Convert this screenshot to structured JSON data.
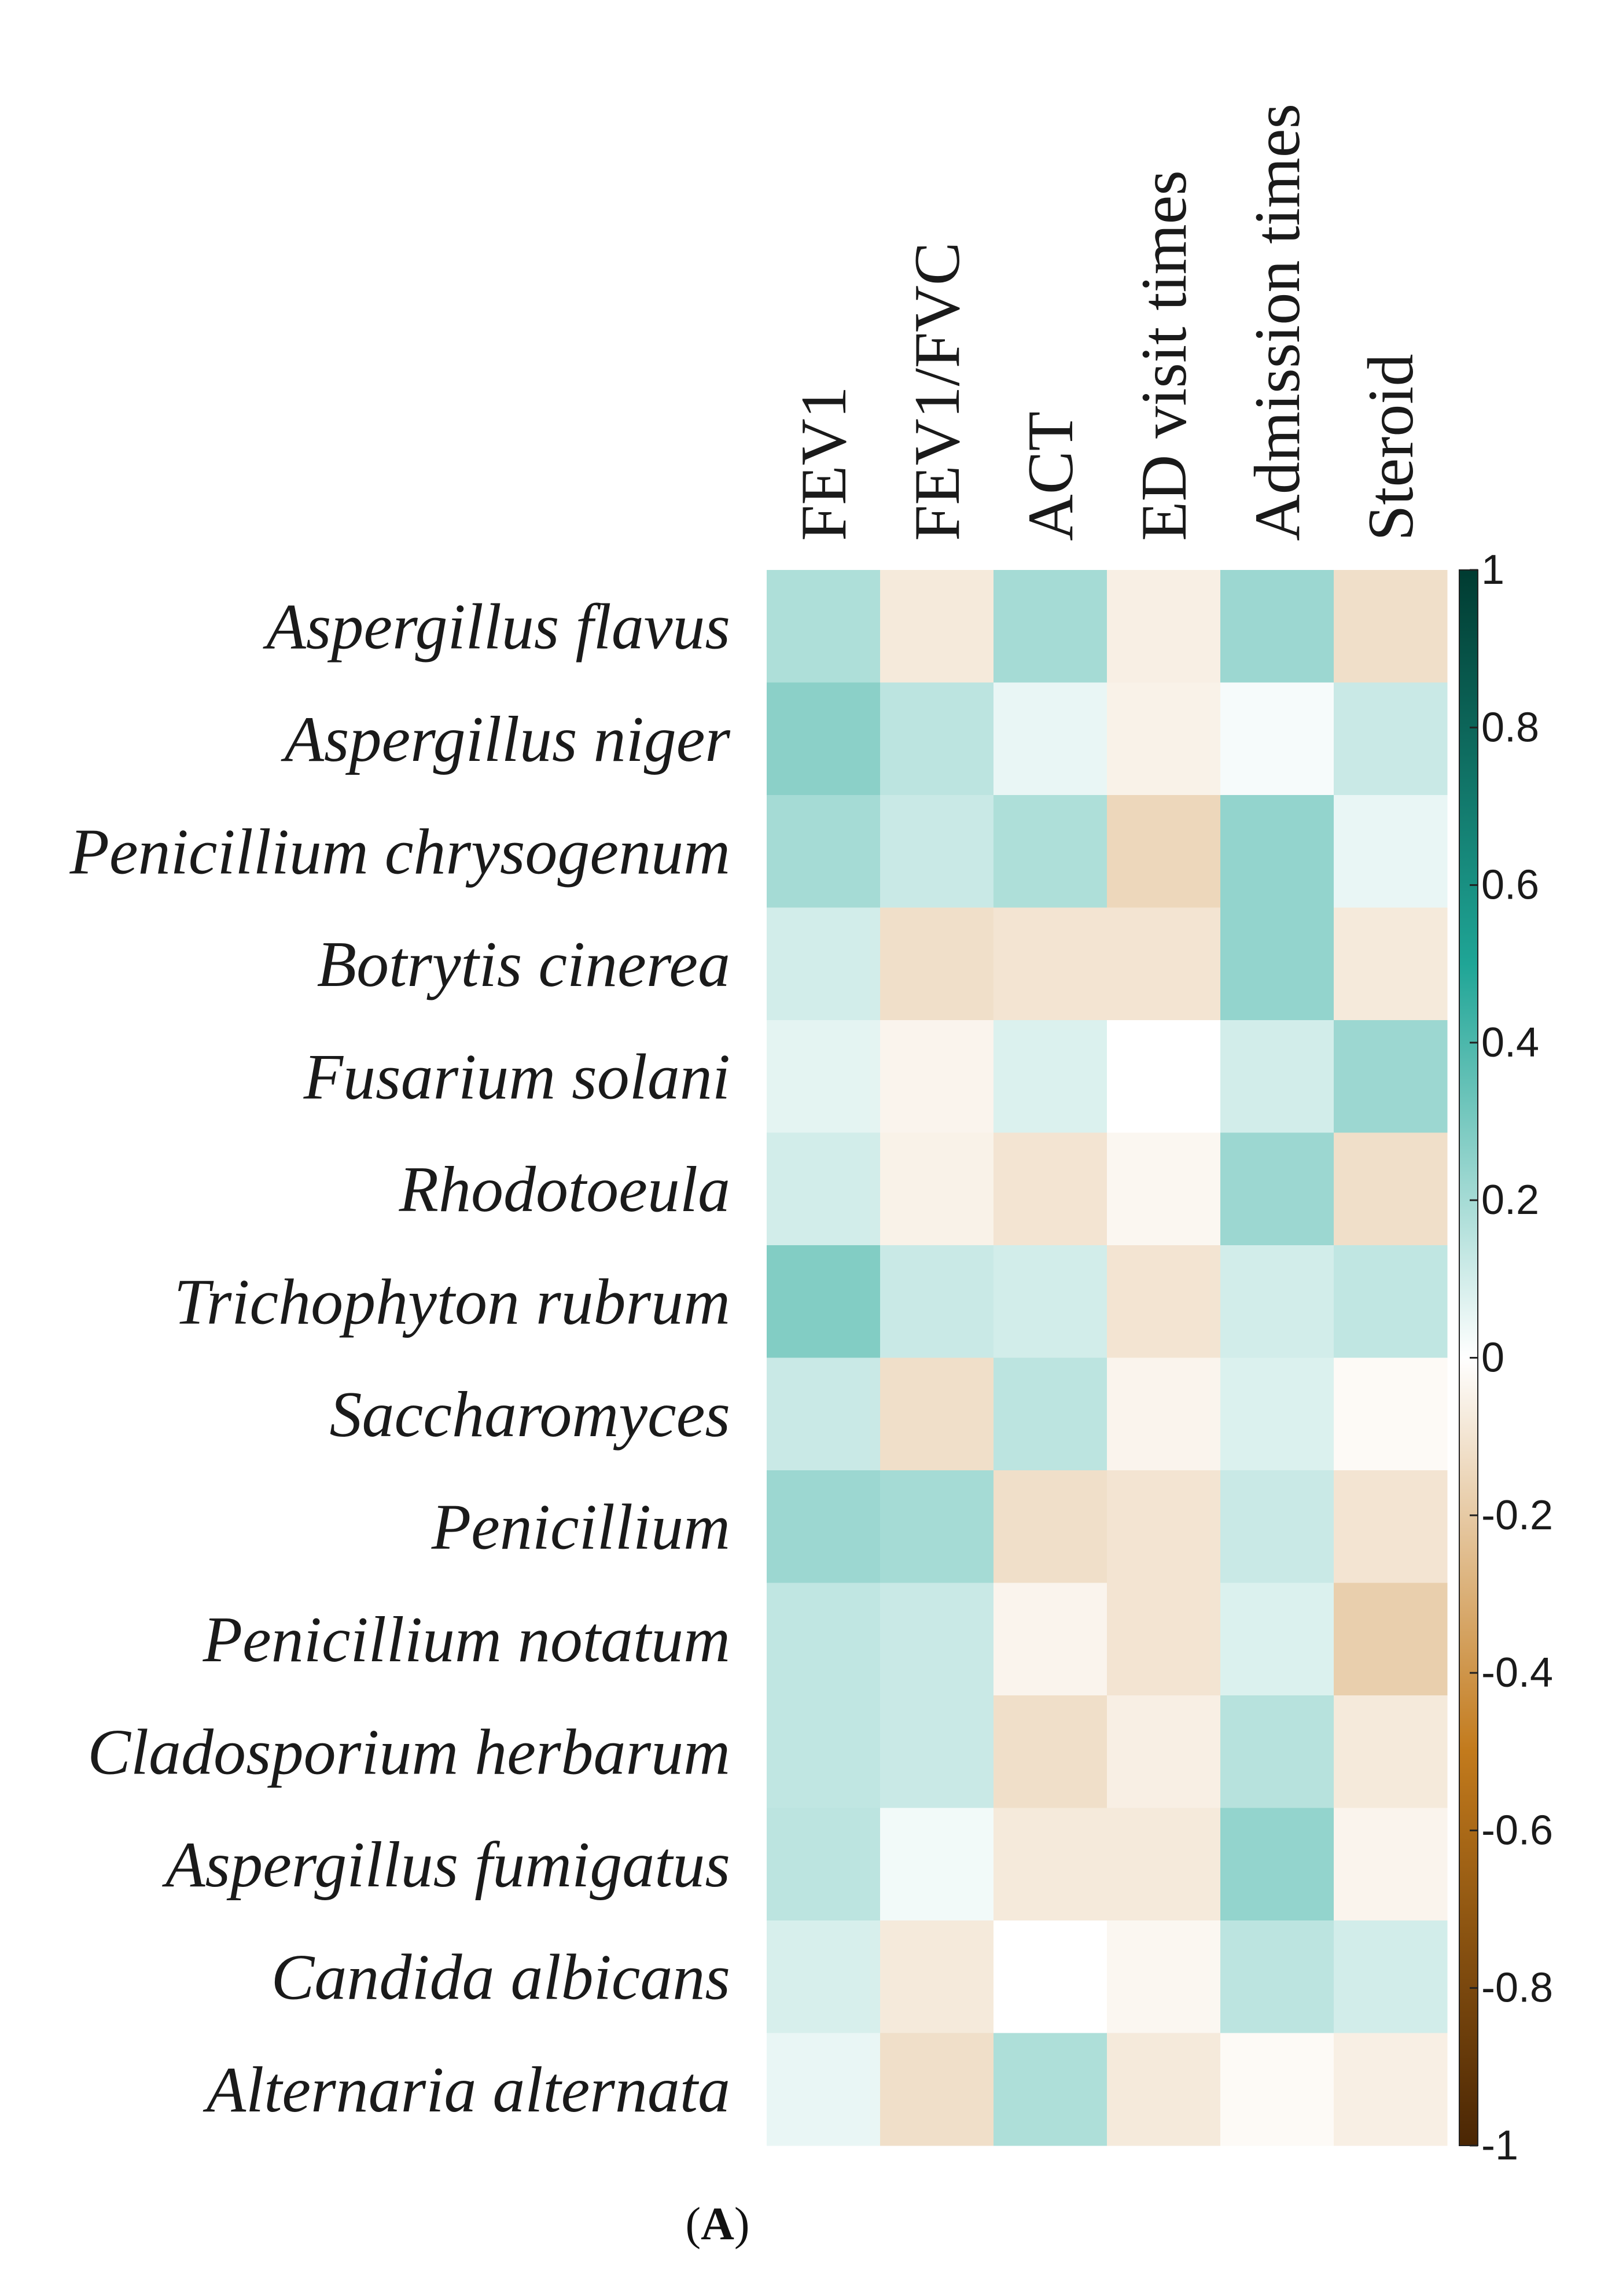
{
  "chart_data": {
    "type": "heatmap",
    "title": "",
    "panel_label": "A",
    "columns": [
      "FEV1",
      "FEV1/FVC",
      "ACT",
      "ED visit times",
      "Admission times",
      "Steroid"
    ],
    "rows": [
      "Aspergillus flavus",
      "Aspergillus niger",
      "Penicillium chrysogenum",
      "Botrytis cinerea",
      "Fusarium solani",
      "Rhodotoeula",
      "Trichophyton rubrum",
      "Saccharomyces",
      "Penicillium",
      "Penicillium notatum",
      "Cladosporium herbarum",
      "Aspergillus fumigatus",
      "Candida albicans",
      "Alternaria alternata"
    ],
    "values": [
      [
        0.18,
        -0.08,
        0.2,
        -0.06,
        0.22,
        -0.12
      ],
      [
        0.26,
        0.15,
        0.05,
        -0.05,
        0.02,
        0.12
      ],
      [
        0.2,
        0.12,
        0.18,
        -0.15,
        0.24,
        0.05
      ],
      [
        0.1,
        -0.12,
        -0.1,
        -0.1,
        0.24,
        -0.08
      ],
      [
        0.06,
        -0.04,
        0.08,
        0.0,
        0.1,
        0.22
      ],
      [
        0.1,
        -0.05,
        -0.1,
        -0.03,
        0.22,
        -0.12
      ],
      [
        0.28,
        0.12,
        0.1,
        -0.1,
        0.1,
        0.14
      ],
      [
        0.12,
        -0.12,
        0.15,
        -0.04,
        0.08,
        -0.02
      ],
      [
        0.22,
        0.2,
        -0.12,
        -0.1,
        0.12,
        -0.1
      ],
      [
        0.14,
        0.12,
        -0.04,
        -0.1,
        0.08,
        -0.18
      ],
      [
        0.14,
        0.12,
        -0.12,
        -0.06,
        0.16,
        -0.08
      ],
      [
        0.15,
        0.03,
        -0.08,
        -0.08,
        0.24,
        -0.04
      ],
      [
        0.09,
        -0.08,
        0.0,
        -0.03,
        0.15,
        0.1
      ],
      [
        0.05,
        -0.12,
        0.18,
        -0.08,
        -0.02,
        -0.06
      ]
    ],
    "color_scale": {
      "min": -1,
      "max": 1,
      "colors": [
        {
          "value": -1,
          "color": "#4a2604"
        },
        {
          "value": -0.5,
          "color": "#c27a1c"
        },
        {
          "value": 0,
          "color": "#ffffff"
        },
        {
          "value": 0.5,
          "color": "#1fa596"
        },
        {
          "value": 1,
          "color": "#003b31"
        }
      ],
      "ticks": [
        1,
        0.8,
        0.6,
        0.4,
        0.2,
        0,
        -0.2,
        -0.4,
        -0.6,
        -0.8,
        -1
      ],
      "tick_labels": [
        "1",
        "0.8",
        "0.6",
        "0.4",
        "0.2",
        "0",
        "-0.2",
        "-0.4",
        "-0.6",
        "-0.8",
        "-1"
      ]
    }
  }
}
